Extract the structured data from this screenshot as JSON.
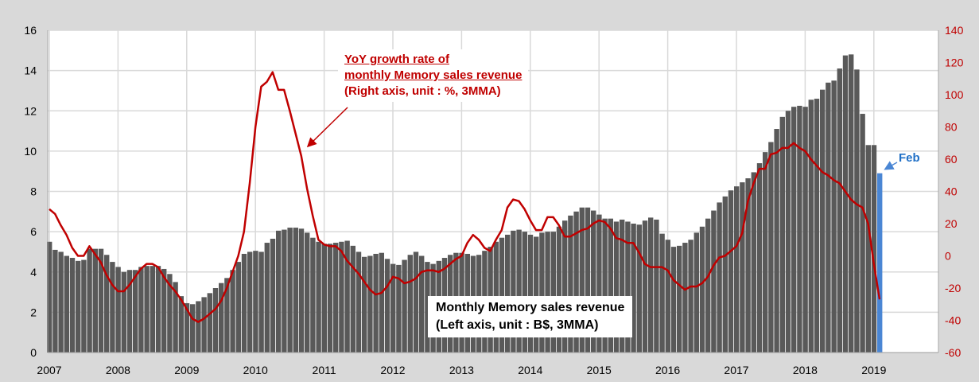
{
  "chart_data": {
    "type": "bar+line",
    "x_start": "2007-01",
    "x_end": "2019-02",
    "x_tick_labels": [
      "2007",
      "2008",
      "2009",
      "2010",
      "2011",
      "2012",
      "2013",
      "2014",
      "2015",
      "2016",
      "2017",
      "2018",
      "2019"
    ],
    "left_axis": {
      "range": [
        0,
        16
      ],
      "ticks": [
        0,
        2,
        4,
        6,
        8,
        10,
        12,
        14,
        16
      ],
      "color": "#000000"
    },
    "right_axis": {
      "range": [
        -60,
        140
      ],
      "ticks": [
        -60,
        -40,
        -20,
        0,
        20,
        40,
        60,
        80,
        100,
        120,
        140
      ],
      "color": "#c00000"
    },
    "grid": true,
    "series": [
      {
        "type": "bar",
        "axis": "left",
        "color": "#595959",
        "highlight_last_color": "#4a86d4",
        "values": [
          5.5,
          5.1,
          5.0,
          4.8,
          4.7,
          4.55,
          4.6,
          5.15,
          5.15,
          5.15,
          4.85,
          4.5,
          4.25,
          4.0,
          4.1,
          4.1,
          4.25,
          4.3,
          4.3,
          4.3,
          4.15,
          3.9,
          3.5,
          2.8,
          2.45,
          2.4,
          2.55,
          2.75,
          2.95,
          3.2,
          3.45,
          3.7,
          4.1,
          4.5,
          4.9,
          5.0,
          5.05,
          5.0,
          5.45,
          5.65,
          6.05,
          6.1,
          6.2,
          6.2,
          6.15,
          5.95,
          5.7,
          5.5,
          5.4,
          5.4,
          5.45,
          5.5,
          5.55,
          5.3,
          5.0,
          4.75,
          4.8,
          4.9,
          4.95,
          4.65,
          4.4,
          4.35,
          4.6,
          4.85,
          5.0,
          4.8,
          4.5,
          4.4,
          4.55,
          4.7,
          4.85,
          4.95,
          4.95,
          4.9,
          4.8,
          4.85,
          5.05,
          5.25,
          5.5,
          5.7,
          5.85,
          6.05,
          6.1,
          6.0,
          5.85,
          5.75,
          5.95,
          6.0,
          6.0,
          6.25,
          6.55,
          6.8,
          7.0,
          7.2,
          7.2,
          7.05,
          6.85,
          6.65,
          6.65,
          6.5,
          6.6,
          6.5,
          6.4,
          6.35,
          6.55,
          6.7,
          6.6,
          5.9,
          5.6,
          5.25,
          5.3,
          5.45,
          5.6,
          5.95,
          6.25,
          6.65,
          7.05,
          7.45,
          7.75,
          8.05,
          8.25,
          8.45,
          8.65,
          8.95,
          9.4,
          9.95,
          10.45,
          11.1,
          11.7,
          12.0,
          12.2,
          12.25,
          12.2,
          12.55,
          12.6,
          13.05,
          13.4,
          13.5,
          14.1,
          14.75,
          14.8,
          14.05,
          11.85,
          10.3,
          10.3,
          8.9
        ]
      },
      {
        "type": "line",
        "axis": "right",
        "color": "#c00000",
        "values": [
          29,
          26,
          19,
          13,
          5,
          0,
          0,
          6,
          1,
          -4,
          -12,
          -18,
          -22,
          -22,
          -18,
          -13,
          -8,
          -5,
          -5,
          -7,
          -13,
          -18,
          -22,
          -27,
          -33,
          -39,
          -41,
          -39,
          -36,
          -33,
          -28,
          -20,
          -10,
          0,
          15,
          45,
          80,
          105,
          108,
          114,
          103,
          103,
          90,
          76,
          62,
          42,
          25,
          10,
          7,
          6,
          6,
          3,
          -3,
          -7,
          -11,
          -16,
          -21,
          -24,
          -23,
          -19,
          -13,
          -14,
          -17,
          -16,
          -14,
          -10,
          -9,
          -9,
          -10,
          -8,
          -5,
          -2,
          0,
          8,
          13,
          10,
          5,
          3,
          10,
          16,
          30,
          35,
          34,
          29,
          22,
          16,
          16,
          24,
          24,
          19,
          12,
          12,
          14,
          16,
          17,
          20,
          22,
          21,
          17,
          11,
          10,
          8,
          8,
          2,
          -5,
          -7,
          -7,
          -7,
          -9,
          -15,
          -18,
          -21,
          -19,
          -19,
          -17,
          -13,
          -6,
          -1,
          0,
          3,
          6,
          14,
          34,
          45,
          54,
          54,
          63,
          64,
          67,
          67,
          70,
          67,
          65,
          60,
          56,
          52,
          50,
          47,
          45,
          40,
          35,
          32,
          30,
          20,
          -5,
          -27
        ]
      }
    ],
    "annotations": {
      "line_label": [
        "YoY growth rate of",
        "monthly Memory sales revenue",
        "(Right axis, unit : %, 3MMA)"
      ],
      "bar_label": [
        "Monthly Memory sales revenue",
        "(Left axis, unit : B$, 3MMA)"
      ],
      "last_bar_label": "Feb"
    }
  }
}
